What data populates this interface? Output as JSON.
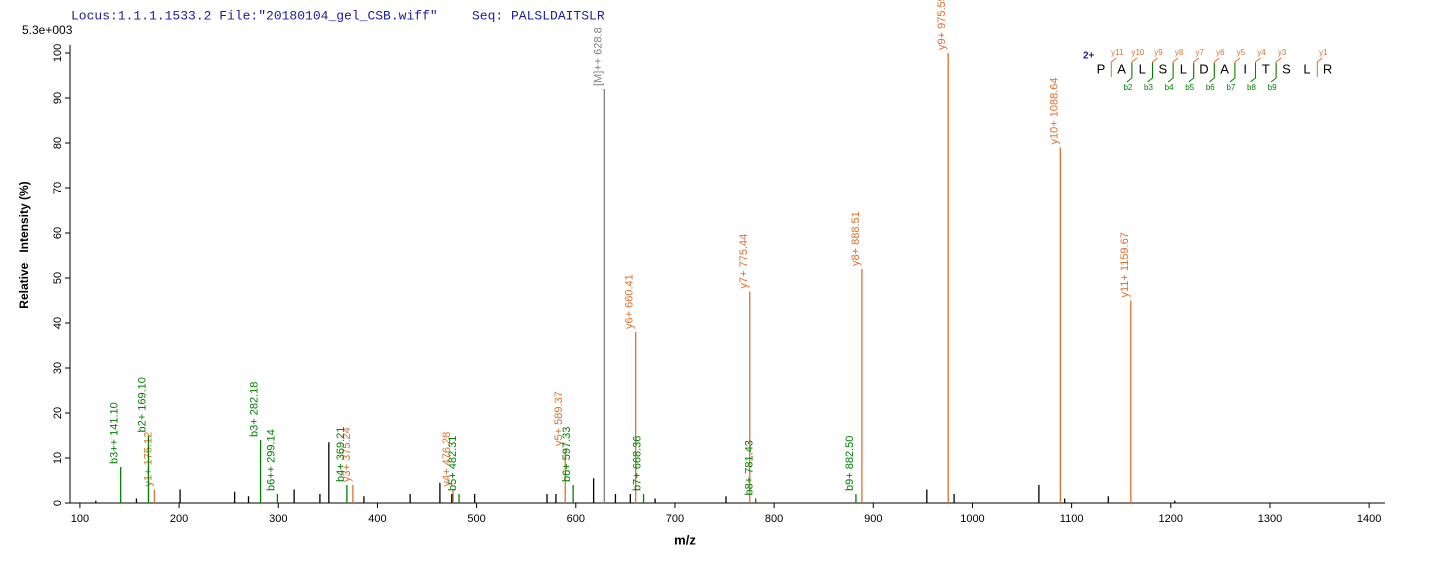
{
  "chart_data": {
    "type": "stem",
    "title": "Locus:1.1.1.1533.2 File:\"20180104_gel_CSB.wiff\"",
    "subtitle": "Seq: PALSLDAITSLR",
    "max_intensity": "5.3e+003",
    "x_label": "m/z",
    "y_label": "Relative   Intensity (%)",
    "xlim": [
      90,
      1416
    ],
    "ylim": [
      0,
      102
    ],
    "xticks": [
      100,
      200,
      300,
      400,
      500,
      600,
      700,
      800,
      900,
      1000,
      1100,
      1200,
      1300,
      1400
    ],
    "yticks": [
      0,
      10,
      20,
      30,
      40,
      50,
      60,
      70,
      80,
      90,
      100
    ],
    "series": [
      {
        "color": "#000000",
        "x": [
          116,
          157,
          201,
          256,
          270,
          316,
          342,
          351,
          386.4,
          433,
          463,
          475,
          498,
          571,
          580,
          618,
          640,
          655,
          680,
          751.5,
          954,
          981.5,
          1067,
          1093,
          1137,
          1204
        ],
        "values": [
          0.5,
          1,
          3,
          2.5,
          1.5,
          3,
          2,
          13.5,
          1.5,
          2,
          4.5,
          2,
          2,
          2,
          2,
          5.5,
          2,
          2,
          1,
          1.5,
          3,
          2,
          4,
          1,
          1.5,
          0.5
        ]
      },
      {
        "color": "#e07030",
        "x": [
          175.12,
          375.24,
          476.28,
          589.37,
          660.41,
          775.44,
          888.51,
          975.55,
          1088.64,
          1159.67
        ],
        "values": [
          3,
          4,
          3,
          12,
          38,
          47,
          52,
          100,
          79,
          45
        ],
        "labels": [
          "y1+ 175.12",
          "y3+ 375.24",
          "y4+ 476.28",
          "y5+ 589.37",
          "y6+ 660.41",
          "y7+ 775.44",
          "y8+ 888.51",
          "y9+ 975.55",
          "y10+ 1088.64",
          "y11+ 1159.67"
        ]
      },
      {
        "color": "#008000",
        "x": [
          141.1,
          169.1,
          282.18,
          299.14,
          369.21,
          482.31,
          597.33,
          668.36,
          781.43,
          882.5
        ],
        "values": [
          8,
          15,
          14,
          2,
          4,
          2,
          4,
          2,
          1,
          2
        ],
        "labels": [
          "b3++ 141.10",
          "b2+ 169.10",
          "b3+ 282.18",
          "b6++ 299.14",
          "b4+ 369.21",
          "b5+ 482.31",
          "b6+ 597.33",
          "b7+ 668.36",
          "b8+ 781.43",
          "b9+ 882.50"
        ]
      },
      {
        "color": "#808080",
        "x": [
          628.8
        ],
        "values": [
          92
        ],
        "labels": [
          "[M]++ 628.8"
        ]
      }
    ],
    "sequence_annotation": {
      "charge": "2+",
      "residues": [
        "P",
        "A",
        "L",
        "S",
        "L",
        "D",
        "A",
        "I",
        "T",
        "S",
        "L",
        "R"
      ],
      "y_labels": [
        "y11",
        "y10",
        "y9",
        "y8",
        "y7",
        "y6",
        "y5",
        "y4",
        "y3",
        null,
        "y1"
      ],
      "b_labels": [
        null,
        "b2",
        "b3",
        "b4",
        "b5",
        "b6",
        "b7",
        "b8",
        "b9",
        null,
        null
      ]
    }
  }
}
